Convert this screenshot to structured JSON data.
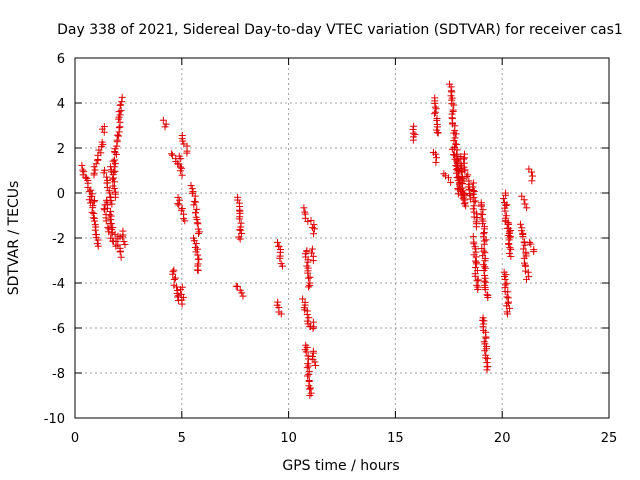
{
  "chart_data": {
    "type": "scatter",
    "title": "Day 338 of 2021, Sidereal Day-to-day VTEC variation (SDTVAR) for receiver cas1",
    "xlabel": "GPS time / hours",
    "ylabel": "SDTVAR / TECUs",
    "xlim": [
      0,
      25
    ],
    "ylim": [
      -10,
      6
    ],
    "xticks": [
      0,
      5,
      10,
      15,
      20,
      25
    ],
    "yticks": [
      -10,
      -8,
      -6,
      -4,
      -2,
      0,
      2,
      4,
      6
    ],
    "xtick_labels": [
      "0",
      "5",
      "10",
      "15",
      "20",
      "25"
    ],
    "ytick_labels": [
      "-10",
      "-8",
      "-6",
      "-4",
      "-2",
      "0",
      "2",
      "4",
      "6"
    ],
    "grid": true,
    "marker": "+",
    "color": "#e00000",
    "tracks": [
      {
        "x": [
          0.3,
          0.9
        ],
        "y": [
          1.2,
          -0.4
        ]
      },
      {
        "x": [
          0.7,
          1.1
        ],
        "y": [
          -0.2,
          -2.4
        ]
      },
      {
        "x": [
          0.85,
          1.3
        ],
        "y": [
          0.8,
          2.3
        ]
      },
      {
        "x": [
          1.3,
          1.35
        ],
        "y": [
          2.7,
          3.0
        ]
      },
      {
        "x": [
          1.4,
          1.5
        ],
        "y": [
          -0.5,
          -1.2
        ]
      },
      {
        "x": [
          1.4,
          1.7
        ],
        "y": [
          1.0,
          -0.5
        ]
      },
      {
        "x": [
          1.5,
          1.8
        ],
        "y": [
          -0.3,
          -1.8
        ]
      },
      {
        "x": [
          1.5,
          1.9
        ],
        "y": [
          -1.5,
          -2.3
        ]
      },
      {
        "x": [
          1.7,
          1.9
        ],
        "y": [
          1.2,
          -0.2
        ]
      },
      {
        "x": [
          1.8,
          1.95
        ],
        "y": [
          0.9,
          2.4
        ]
      },
      {
        "x": [
          1.9,
          2.1
        ],
        "y": [
          -1.8,
          -2.0
        ]
      },
      {
        "x": [
          1.95,
          2.2
        ],
        "y": [
          -2.0,
          -2.8
        ]
      },
      {
        "x": [
          2.0,
          2.2
        ],
        "y": [
          2.5,
          4.2
        ]
      },
      {
        "x": [
          2.2,
          2.3
        ],
        "y": [
          -1.7,
          -2.3
        ]
      },
      {
        "x": [
          4.2,
          4.25
        ],
        "y": [
          3.3,
          2.9
        ]
      },
      {
        "x": [
          4.5,
          4.8
        ],
        "y": [
          1.8,
          1.3
        ]
      },
      {
        "x": [
          4.6,
          4.8
        ],
        "y": [
          -3.4,
          -4.8
        ]
      },
      {
        "x": [
          4.8,
          5.1
        ],
        "y": [
          -0.2,
          -1.2
        ]
      },
      {
        "x": [
          4.9,
          5.0
        ],
        "y": [
          1.6,
          0.8
        ]
      },
      {
        "x": [
          5.0,
          5.3
        ],
        "y": [
          2.5,
          1.8
        ]
      },
      {
        "x": [
          5.0,
          5.05
        ],
        "y": [
          -4.2,
          -4.9
        ]
      },
      {
        "x": [
          5.5,
          5.8
        ],
        "y": [
          0.3,
          -1.8
        ]
      },
      {
        "x": [
          5.6,
          5.8
        ],
        "y": [
          -2.0,
          -3.5
        ]
      },
      {
        "x": [
          7.6,
          7.8
        ],
        "y": [
          -4.1,
          -4.6
        ]
      },
      {
        "x": [
          7.65,
          7.75
        ],
        "y": [
          -0.2,
          -2.1
        ]
      },
      {
        "x": [
          9.5,
          9.7
        ],
        "y": [
          -2.2,
          -3.2
        ]
      },
      {
        "x": [
          9.5,
          9.6
        ],
        "y": [
          -4.8,
          -5.4
        ]
      },
      {
        "x": [
          10.7,
          10.85
        ],
        "y": [
          -0.7,
          -1.3
        ]
      },
      {
        "x": [
          10.7,
          11.0
        ],
        "y": [
          -4.7,
          -6.0
        ]
      },
      {
        "x": [
          10.8,
          11.0
        ],
        "y": [
          -2.5,
          -4.2
        ]
      },
      {
        "x": [
          10.8,
          11.0
        ],
        "y": [
          -6.7,
          -9.0
        ]
      },
      {
        "x": [
          11.1,
          11.2
        ],
        "y": [
          -1.2,
          -1.8
        ]
      },
      {
        "x": [
          11.1,
          11.2
        ],
        "y": [
          -2.5,
          -3.0
        ]
      },
      {
        "x": [
          11.1,
          11.2
        ],
        "y": [
          -5.8,
          -6.0
        ]
      },
      {
        "x": [
          11.1,
          11.2
        ],
        "y": [
          -7.0,
          -7.7
        ]
      },
      {
        "x": [
          15.8,
          15.9
        ],
        "y": [
          3.0,
          2.3
        ]
      },
      {
        "x": [
          16.8,
          16.95
        ],
        "y": [
          4.2,
          2.6
        ]
      },
      {
        "x": [
          16.85,
          16.95
        ],
        "y": [
          1.8,
          1.4
        ]
      },
      {
        "x": [
          17.3,
          17.6
        ],
        "y": [
          0.9,
          0.5
        ]
      },
      {
        "x": [
          17.6,
          18.0
        ],
        "y": [
          4.8,
          0.0
        ]
      },
      {
        "x": [
          17.7,
          18.2
        ],
        "y": [
          2.0,
          -0.4
        ]
      },
      {
        "x": [
          18.0,
          18.3
        ],
        "y": [
          1.6,
          -0.6
        ]
      },
      {
        "x": [
          18.2,
          18.5
        ],
        "y": [
          1.7,
          -0.3
        ]
      },
      {
        "x": [
          18.6,
          18.8
        ],
        "y": [
          0.4,
          -1.5
        ]
      },
      {
        "x": [
          18.7,
          18.85
        ],
        "y": [
          -2.0,
          -4.3
        ]
      },
      {
        "x": [
          19.0,
          19.2
        ],
        "y": [
          -0.4,
          -2.2
        ]
      },
      {
        "x": [
          19.1,
          19.3
        ],
        "y": [
          -2.3,
          -4.7
        ]
      },
      {
        "x": [
          19.1,
          19.3
        ],
        "y": [
          -5.5,
          -7.9
        ]
      },
      {
        "x": [
          20.1,
          20.3
        ],
        "y": [
          -3.5,
          -5.4
        ]
      },
      {
        "x": [
          20.1,
          20.4
        ],
        "y": [
          0.0,
          -2.8
        ]
      },
      {
        "x": [
          20.2,
          20.4
        ],
        "y": [
          -1.2,
          -2.0
        ]
      },
      {
        "x": [
          20.9,
          21.1
        ],
        "y": [
          -0.2,
          -0.6
        ]
      },
      {
        "x": [
          20.9,
          21.2
        ],
        "y": [
          -1.4,
          -3.8
        ]
      },
      {
        "x": [
          21.3,
          21.45
        ],
        "y": [
          1.0,
          0.6
        ]
      },
      {
        "x": [
          21.35,
          21.45
        ],
        "y": [
          -2.2,
          -2.6
        ]
      }
    ]
  }
}
